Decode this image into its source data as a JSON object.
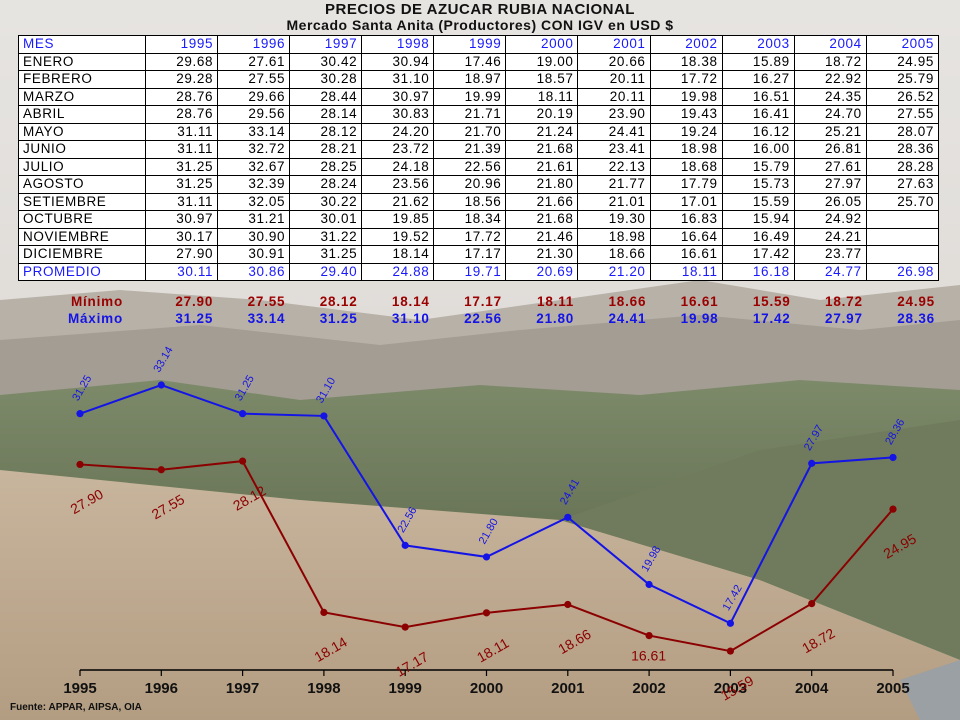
{
  "title": "PRECIOS DE AZUCAR RUBIA NACIONAL",
  "subtitle": "Mercado Santa Anita (Productores) CON  IGV en USD $",
  "table": {
    "header": [
      "MES",
      "1995",
      "1996",
      "1997",
      "1998",
      "1999",
      "2000",
      "2001",
      "2002",
      "2003",
      "2004",
      "2005"
    ],
    "rows": [
      [
        "ENERO",
        "29.68",
        "27.61",
        "30.42",
        "30.94",
        "17.46",
        "19.00",
        "20.66",
        "18.38",
        "15.89",
        "18.72",
        "24.95"
      ],
      [
        "FEBRERO",
        "29.28",
        "27.55",
        "30.28",
        "31.10",
        "18.97",
        "18.57",
        "20.11",
        "17.72",
        "16.27",
        "22.92",
        "25.79"
      ],
      [
        "MARZO",
        "28.76",
        "29.66",
        "28.44",
        "30.97",
        "19.99",
        "18.11",
        "20.11",
        "19.98",
        "16.51",
        "24.35",
        "26.52"
      ],
      [
        "ABRIL",
        "28.76",
        "29.56",
        "28.14",
        "30.83",
        "21.71",
        "20.19",
        "23.90",
        "19.43",
        "16.41",
        "24.70",
        "27.55"
      ],
      [
        "MAYO",
        "31.11",
        "33.14",
        "28.12",
        "24.20",
        "21.70",
        "21.24",
        "24.41",
        "19.24",
        "16.12",
        "25.21",
        "28.07"
      ],
      [
        "JUNIO",
        "31.11",
        "32.72",
        "28.21",
        "23.72",
        "21.39",
        "21.68",
        "23.41",
        "18.98",
        "16.00",
        "26.81",
        "28.36"
      ],
      [
        "JULIO",
        "31.25",
        "32.67",
        "28.25",
        "24.18",
        "22.56",
        "21.61",
        "22.13",
        "18.68",
        "15.79",
        "27.61",
        "28.28"
      ],
      [
        "AGOSTO",
        "31.25",
        "32.39",
        "28.24",
        "23.56",
        "20.96",
        "21.80",
        "21.77",
        "17.79",
        "15.73",
        "27.97",
        "27.63"
      ],
      [
        "SETIEMBRE",
        "31.11",
        "32.05",
        "30.22",
        "21.62",
        "18.56",
        "21.66",
        "21.01",
        "17.01",
        "15.59",
        "26.05",
        "25.70"
      ],
      [
        "OCTUBRE",
        "30.97",
        "31.21",
        "30.01",
        "19.85",
        "18.34",
        "21.68",
        "19.30",
        "16.83",
        "15.94",
        "24.92",
        ""
      ],
      [
        "NOVIEMBRE",
        "30.17",
        "30.90",
        "31.22",
        "19.52",
        "17.72",
        "21.46",
        "18.98",
        "16.64",
        "16.49",
        "24.21",
        ""
      ],
      [
        "DICIEMBRE",
        "27.90",
        "30.91",
        "31.25",
        "18.14",
        "17.17",
        "21.30",
        "18.66",
        "16.61",
        "17.42",
        "23.77",
        ""
      ]
    ],
    "average_row": [
      "PROMEDIO",
      "30.11",
      "30.86",
      "29.40",
      "24.88",
      "19.71",
      "20.69",
      "21.20",
      "18.11",
      "16.18",
      "24.77",
      "26.98"
    ]
  },
  "summary": {
    "min_label": "Mínimo",
    "max_label": "Máximo",
    "min_values": [
      "27.90",
      "27.55",
      "28.12",
      "18.14",
      "17.17",
      "18.11",
      "18.66",
      "16.61",
      "15.59",
      "18.72",
      "24.95"
    ],
    "max_values": [
      "31.25",
      "33.14",
      "31.25",
      "31.10",
      "22.56",
      "21.80",
      "24.41",
      "19.98",
      "17.42",
      "27.97",
      "28.36"
    ]
  },
  "chart_data": {
    "type": "line",
    "x": [
      "1995",
      "1996",
      "1997",
      "1998",
      "1999",
      "2000",
      "2001",
      "2002",
      "2003",
      "2004",
      "2005"
    ],
    "series": [
      {
        "name": "Máximo",
        "color": "#1414e6",
        "values": [
          31.25,
          33.14,
          31.25,
          31.1,
          22.56,
          21.8,
          24.41,
          19.98,
          17.42,
          27.97,
          28.36
        ],
        "labels": [
          "31.25",
          "33.14",
          "31.25",
          "31.10",
          "22.56",
          "21.80",
          "24.41",
          "19.98",
          "17.42",
          "27.97",
          "28.36"
        ]
      },
      {
        "name": "Mínimo",
        "color": "#8b0000",
        "values": [
          27.9,
          27.55,
          28.12,
          18.14,
          17.17,
          18.11,
          18.66,
          16.61,
          15.59,
          18.72,
          24.95
        ],
        "labels": [
          "27.90",
          "27.55",
          "28.12",
          "18.14",
          "17.17",
          "18.11",
          "18.66",
          "16.61",
          "15.59",
          "18.72",
          "24.95"
        ]
      }
    ],
    "ylim": [
      15.0,
      33.14
    ],
    "grid": false,
    "legend": "none"
  },
  "source": "Fuente:  APPAR, AIPSA, OIA",
  "colors": {
    "header_text": "#1a1aff",
    "min_text": "#9a0000",
    "max_text": "#1414e6"
  }
}
